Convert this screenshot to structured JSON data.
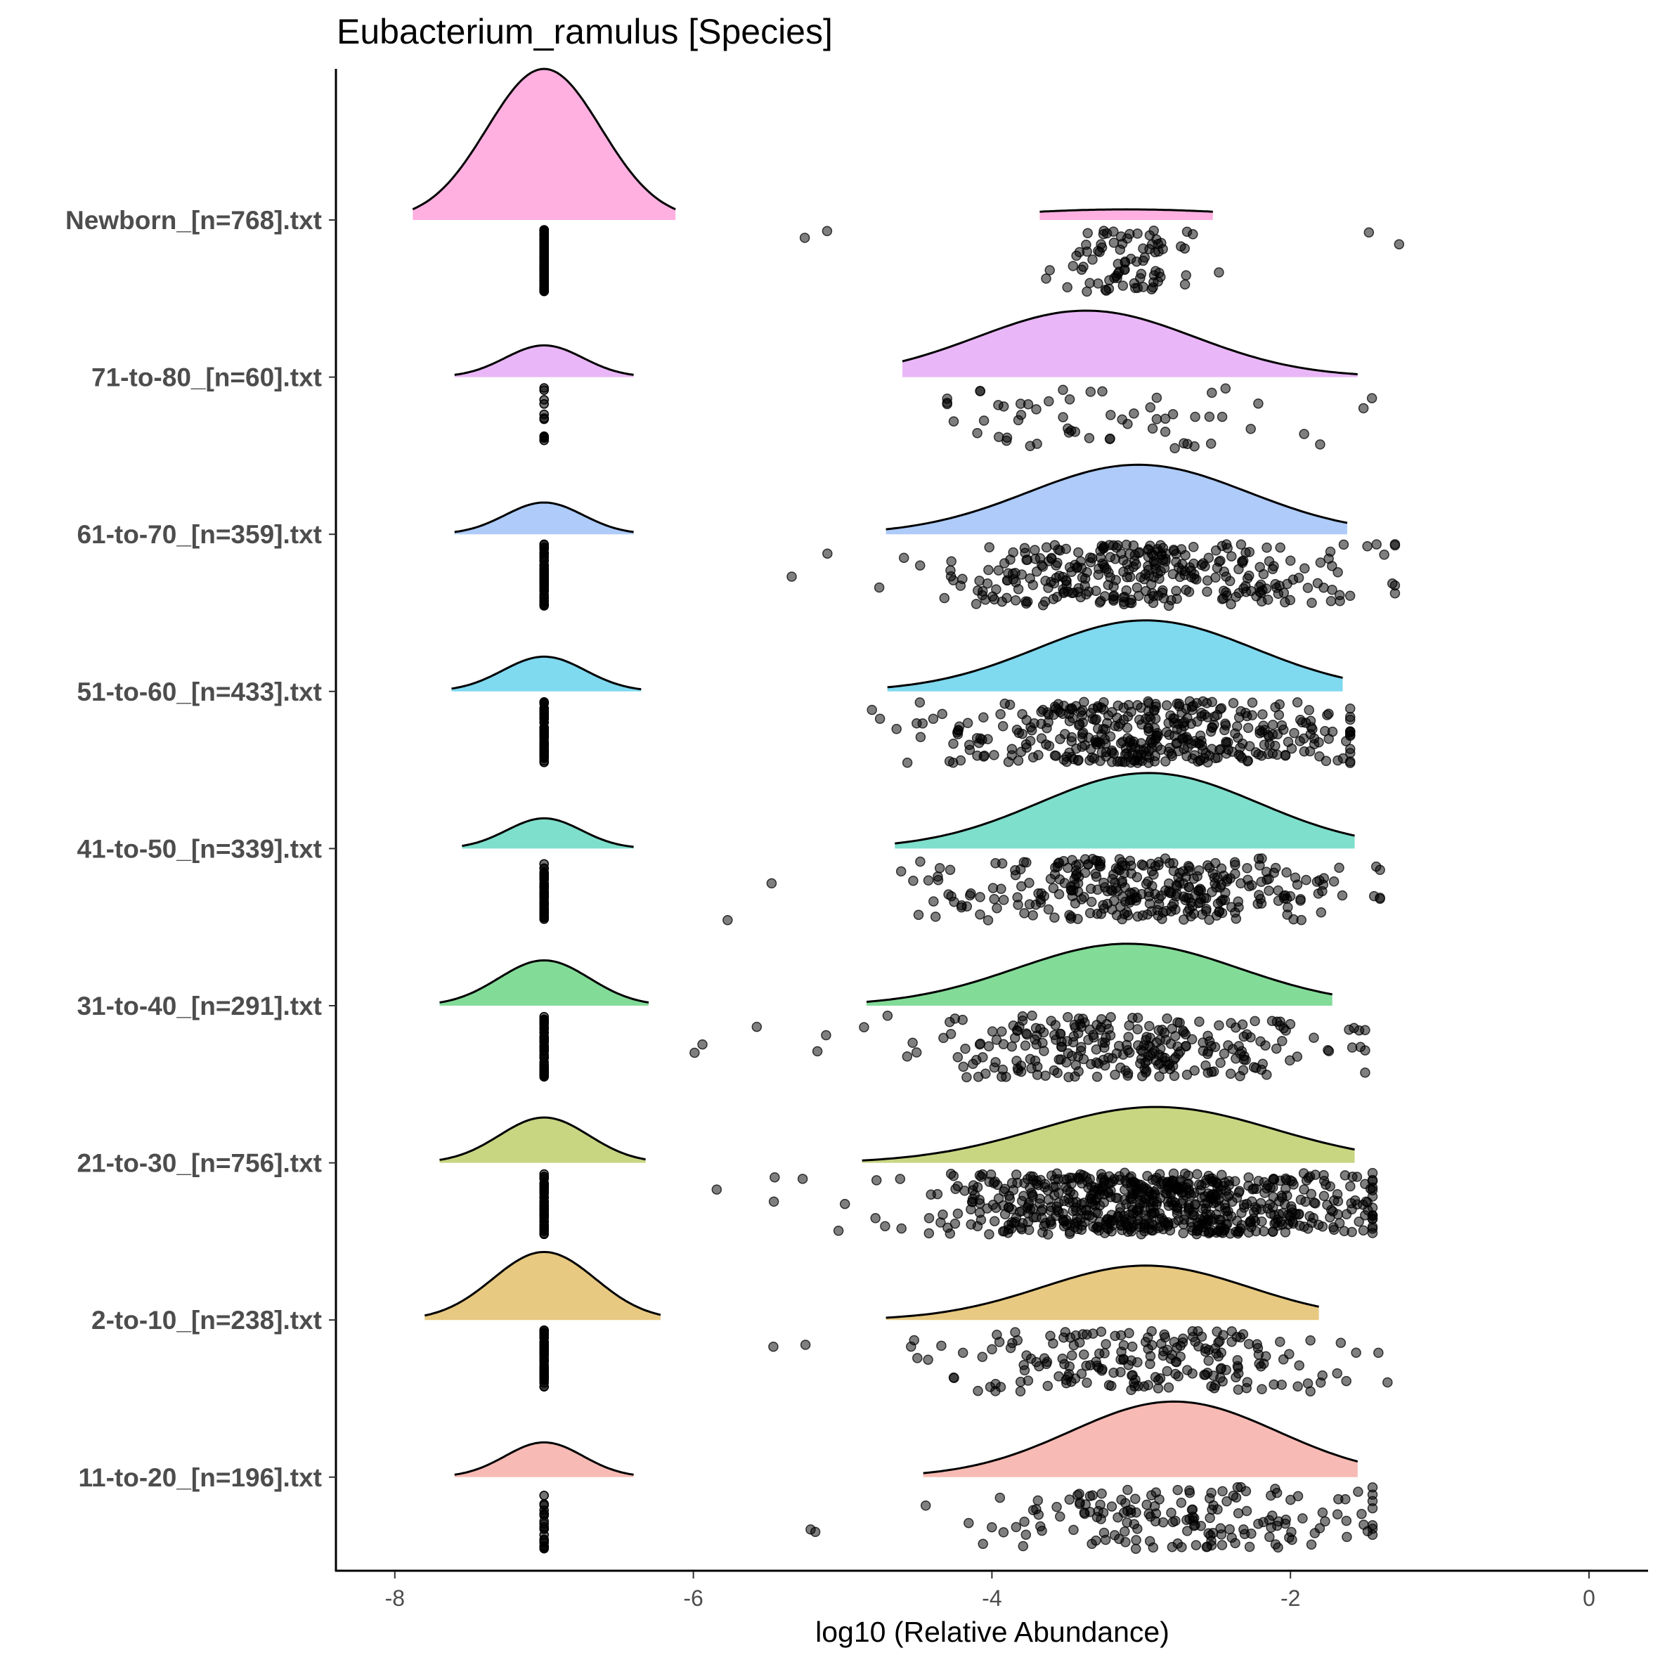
{
  "chart_data": {
    "type": "raincloud",
    "title": "Eubacterium_ramulus [Species]",
    "xlabel": "log10 (Relative Abundance)",
    "ylabel": "",
    "xlim": [
      -8.35,
      0.35
    ],
    "xticks": [
      -8,
      -6,
      -4,
      -2,
      0
    ],
    "xtick_labels": [
      "-8",
      "-6",
      "-4",
      "-2",
      "0"
    ],
    "grid": false,
    "legend": "none",
    "zero_value": -7,
    "groups": [
      {
        "label": "Newborn_[n=768].txt",
        "color": "#FFB0E0",
        "zero": {
          "peak": 1.0,
          "range": [
            -7.88,
            -6.12
          ],
          "points": 220
        },
        "main": {
          "mode": -3.1,
          "peak": 0.07,
          "range": [
            -3.68,
            -2.52
          ],
          "sd": 1.5,
          "points": 85,
          "point_range": [
            -5.4,
            -1.25
          ]
        }
      },
      {
        "label": "71-to-80_[n=60].txt",
        "color": "#E9B7F7",
        "zero": {
          "peak": 0.21,
          "range": [
            -7.6,
            -6.4
          ],
          "points": 12
        },
        "main": {
          "mode": -3.37,
          "peak": 0.44,
          "range": [
            -4.6,
            -1.55
          ],
          "sd": 0.75,
          "points": 60,
          "point_range": [
            -4.3,
            -1.45
          ]
        }
      },
      {
        "label": "61-to-70_[n=359].txt",
        "color": "#AECBFA",
        "zero": {
          "peak": 0.21,
          "range": [
            -7.6,
            -6.4
          ],
          "points": 60
        },
        "main": {
          "mode": -3.02,
          "peak": 0.46,
          "range": [
            -4.71,
            -1.62
          ],
          "sd": 0.72,
          "points": 320,
          "point_range": [
            -5.5,
            -1.3
          ]
        }
      },
      {
        "label": "51-to-60_[n=433].txt",
        "color": "#7FD9EF",
        "zero": {
          "peak": 0.23,
          "range": [
            -7.62,
            -6.35
          ],
          "points": 60
        },
        "main": {
          "mode": -2.97,
          "peak": 0.47,
          "range": [
            -4.7,
            -1.65
          ],
          "sd": 0.68,
          "points": 400,
          "point_range": [
            -4.95,
            -1.6
          ]
        }
      },
      {
        "label": "41-to-50_[n=339].txt",
        "color": "#7EDFCC",
        "zero": {
          "peak": 0.2,
          "range": [
            -7.55,
            -6.4
          ],
          "points": 60
        },
        "main": {
          "mode": -2.95,
          "peak": 0.5,
          "range": [
            -4.65,
            -1.57
          ],
          "sd": 0.68,
          "points": 320,
          "point_range": [
            -5.85,
            -1.4
          ]
        }
      },
      {
        "label": "31-to-40_[n=291].txt",
        "color": "#83DB98",
        "zero": {
          "peak": 0.3,
          "range": [
            -7.7,
            -6.3
          ],
          "points": 60
        },
        "main": {
          "mode": -3.09,
          "peak": 0.41,
          "range": [
            -4.84,
            -1.72
          ],
          "sd": 0.72,
          "points": 270,
          "point_range": [
            -6.2,
            -1.5
          ]
        }
      },
      {
        "label": "21-to-30_[n=756].txt",
        "color": "#C8D682",
        "zero": {
          "peak": 0.3,
          "range": [
            -7.7,
            -6.32
          ],
          "points": 60
        },
        "main": {
          "mode": -2.9,
          "peak": 0.37,
          "range": [
            -4.87,
            -1.57
          ],
          "sd": 0.75,
          "points": 680,
          "point_range": [
            -5.85,
            -1.45
          ]
        }
      },
      {
        "label": "2-to-10_[n=238].txt",
        "color": "#E8C981",
        "zero": {
          "peak": 0.45,
          "range": [
            -7.8,
            -6.22
          ],
          "points": 60
        },
        "main": {
          "mode": -2.97,
          "peak": 0.36,
          "range": [
            -4.71,
            -1.81
          ],
          "sd": 0.75,
          "points": 200,
          "point_range": [
            -5.55,
            -1.35
          ]
        }
      },
      {
        "label": "11-to-20_[n=196].txt",
        "color": "#F8BAB4",
        "zero": {
          "peak": 0.23,
          "range": [
            -7.6,
            -6.4
          ],
          "points": 20
        },
        "main": {
          "mode": -2.78,
          "peak": 0.5,
          "range": [
            -4.46,
            -1.55
          ],
          "sd": 0.65,
          "points": 170,
          "point_range": [
            -5.35,
            -1.45
          ]
        }
      }
    ]
  }
}
